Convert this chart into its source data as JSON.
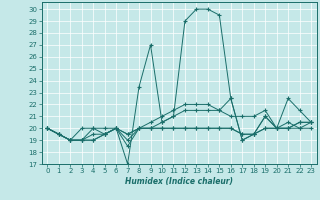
{
  "xlabel": "Humidex (Indice chaleur)",
  "bg_color": "#c5e8e8",
  "line_color": "#1a6e6a",
  "grid_color": "#ffffff",
  "xlim": [
    -0.5,
    23.5
  ],
  "ylim": [
    17,
    30.6
  ],
  "yticks": [
    17,
    18,
    19,
    20,
    21,
    22,
    23,
    24,
    25,
    26,
    27,
    28,
    29,
    30
  ],
  "xticks": [
    0,
    1,
    2,
    3,
    4,
    5,
    6,
    7,
    8,
    9,
    10,
    11,
    12,
    13,
    14,
    15,
    16,
    17,
    18,
    19,
    20,
    21,
    22,
    23
  ],
  "lines": [
    [
      0,
      20,
      1,
      19.5,
      2,
      19,
      3,
      19,
      4,
      19,
      5,
      19.5,
      6,
      20,
      7,
      17,
      8,
      23.5,
      9,
      27,
      10,
      20.5,
      11,
      21,
      12,
      29,
      13,
      30,
      14,
      30,
      15,
      29.5,
      16,
      22.5,
      17,
      19,
      18,
      19.5,
      19,
      21,
      20,
      20,
      21,
      22.5,
      22,
      21.5,
      23,
      20.5
    ],
    [
      0,
      20,
      1,
      19.5,
      2,
      19,
      3,
      19,
      4,
      19,
      5,
      19.5,
      6,
      20,
      7,
      18.5,
      8,
      20,
      9,
      20,
      10,
      20.5,
      11,
      21,
      12,
      21.5,
      13,
      21.5,
      14,
      21.5,
      15,
      21.5,
      16,
      22.5,
      17,
      19,
      18,
      19.5,
      19,
      21,
      20,
      20,
      21,
      20,
      22,
      20.5,
      23,
      20.5
    ],
    [
      0,
      20,
      1,
      19.5,
      2,
      19,
      3,
      20,
      4,
      20,
      5,
      19.5,
      6,
      20,
      7,
      19.5,
      8,
      20,
      9,
      20,
      10,
      20,
      11,
      20,
      12,
      20,
      13,
      20,
      14,
      20,
      15,
      20,
      16,
      20,
      17,
      19.5,
      18,
      19.5,
      19,
      20,
      20,
      20,
      21,
      20.5,
      22,
      20,
      23,
      20.5
    ],
    [
      0,
      20,
      1,
      19.5,
      2,
      19,
      3,
      19,
      4,
      19.5,
      5,
      19.5,
      6,
      20,
      7,
      19,
      8,
      20,
      9,
      20.5,
      10,
      21,
      11,
      21.5,
      12,
      22,
      13,
      22,
      14,
      22,
      15,
      21.5,
      16,
      21,
      17,
      21,
      18,
      21,
      19,
      21.5,
      20,
      20,
      21,
      20,
      22,
      20.5,
      23,
      20.5
    ],
    [
      0,
      20,
      1,
      19.5,
      2,
      19,
      3,
      19,
      4,
      20,
      5,
      20,
      6,
      20,
      7,
      19.5,
      8,
      20,
      9,
      20,
      10,
      20,
      11,
      20,
      12,
      20,
      13,
      20,
      14,
      20,
      15,
      20,
      16,
      20,
      17,
      19.5,
      18,
      19.5,
      19,
      20,
      20,
      20,
      21,
      20,
      22,
      20,
      23,
      20
    ]
  ]
}
